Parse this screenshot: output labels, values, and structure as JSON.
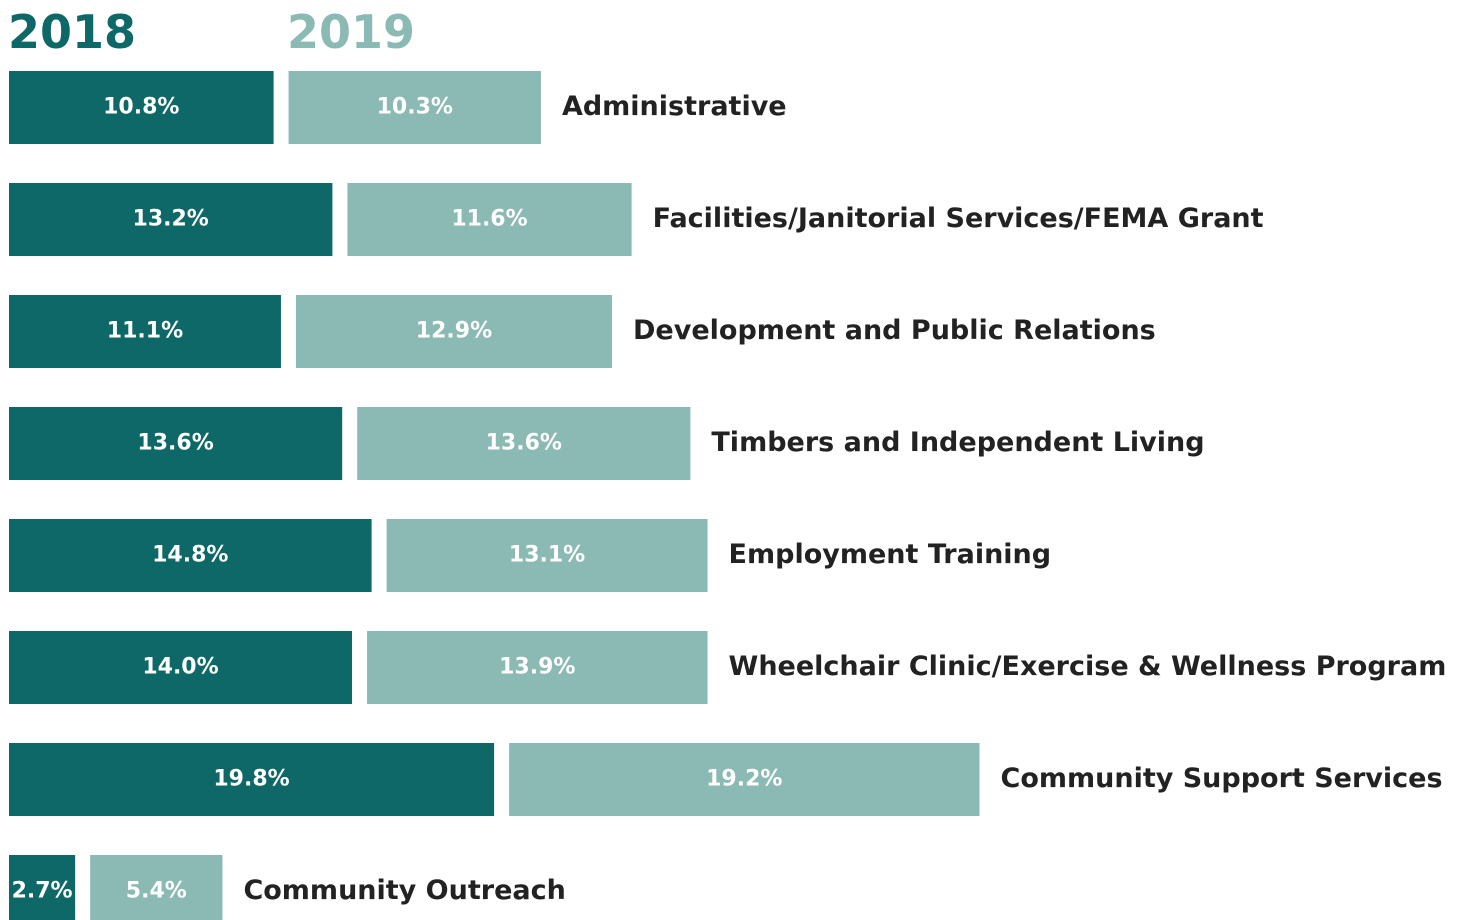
{
  "chart_data": {
    "type": "bar",
    "orientation": "horizontal",
    "categories": [
      "Administrative",
      "Facilities/Janitorial Services/FEMA Grant",
      "Development and Public Relations",
      "Timbers and Independent Living",
      "Employment Training",
      "Wheelchair Clinic/Exercise & Wellness Program",
      "Community Support Services",
      "Community Outreach"
    ],
    "series": [
      {
        "name": "2018",
        "color": "#0f6868",
        "values": [
          10.8,
          13.2,
          11.1,
          13.6,
          14.8,
          14.0,
          19.8,
          2.7
        ],
        "value_labels": [
          "10.8%",
          "13.2%",
          "11.1%",
          "13.6%",
          "14.8%",
          "14.0%",
          "19.8%",
          "2.7%"
        ]
      },
      {
        "name": "2019",
        "color": "#8bbab5",
        "values": [
          10.3,
          11.6,
          12.9,
          13.6,
          13.1,
          13.9,
          19.2,
          5.4
        ],
        "value_labels": [
          "10.3%",
          "11.6%",
          "12.9%",
          "13.6%",
          "13.1%",
          "13.9%",
          "19.2%",
          "5.4%"
        ]
      }
    ]
  }
}
